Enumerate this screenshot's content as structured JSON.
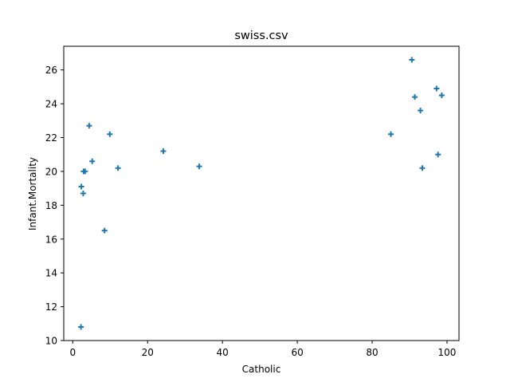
{
  "chart_data": {
    "type": "scatter",
    "title": "swiss.csv",
    "xlabel": "Catholic",
    "ylabel": "Infant.Mortality",
    "xlim": [
      -2.4,
      103.2
    ],
    "ylim": [
      10,
      27.4
    ],
    "xticks": [
      0,
      20,
      40,
      60,
      80,
      100
    ],
    "yticks": [
      10,
      12,
      14,
      16,
      18,
      20,
      22,
      24,
      26
    ],
    "grid": false,
    "marker": "plus",
    "color": "#1f77b4",
    "points": [
      [
        2.2,
        10.8
      ],
      [
        2.3,
        19.1
      ],
      [
        2.8,
        18.7
      ],
      [
        2.9,
        20.0
      ],
      [
        3.3,
        20.0
      ],
      [
        4.4,
        22.7
      ],
      [
        5.2,
        20.6
      ],
      [
        8.5,
        16.5
      ],
      [
        9.9,
        22.2
      ],
      [
        12.1,
        20.2
      ],
      [
        24.2,
        21.2
      ],
      [
        33.8,
        20.3
      ],
      [
        85.0,
        22.2
      ],
      [
        90.6,
        26.6
      ],
      [
        91.4,
        24.4
      ],
      [
        92.9,
        23.6
      ],
      [
        93.4,
        20.2
      ],
      [
        97.2,
        24.9
      ],
      [
        97.6,
        21.0
      ],
      [
        98.6,
        24.5
      ]
    ]
  }
}
